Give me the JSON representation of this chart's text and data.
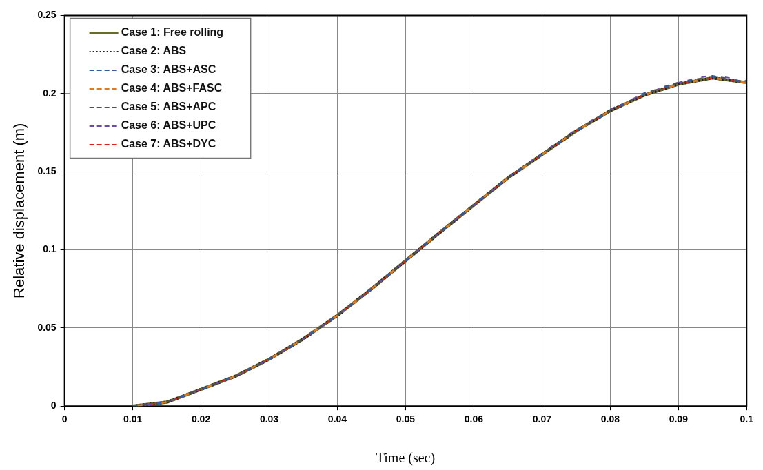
{
  "chart_data": {
    "type": "line",
    "xlabel": "Time (sec)",
    "ylabel": "Relative displacement (m)",
    "x": [
      0.01,
      0.015,
      0.02,
      0.025,
      0.03,
      0.035,
      0.04,
      0.045,
      0.05,
      0.055,
      0.06,
      0.065,
      0.07,
      0.075,
      0.08,
      0.085,
      0.09,
      0.095,
      0.1
    ],
    "series": [
      {
        "name": "Case 1: Free rolling",
        "color": "#6b6b2a",
        "line_style": "solid",
        "values": [
          0,
          0.0025,
          0.0107,
          0.019,
          0.03,
          0.043,
          0.058,
          0.075,
          0.093,
          0.111,
          0.1286,
          0.146,
          0.161,
          0.176,
          0.189,
          0.199,
          0.206,
          0.21,
          0.207
        ]
      },
      {
        "name": "Case 2: ABS",
        "color": "#202020",
        "line_style": "dotted",
        "values": [
          0,
          0.0025,
          0.0107,
          0.019,
          0.03,
          0.043,
          0.058,
          0.075,
          0.093,
          0.111,
          0.1286,
          0.146,
          0.161,
          0.176,
          0.189,
          0.199,
          0.206,
          0.21,
          0.207
        ]
      },
      {
        "name": "Case 3: ABS+ASC",
        "color": "#3a5a9a",
        "line_style": "dashed",
        "values": [
          0,
          0.0025,
          0.0107,
          0.019,
          0.03,
          0.043,
          0.058,
          0.075,
          0.093,
          0.111,
          0.1286,
          0.146,
          0.161,
          0.176,
          0.189,
          0.2,
          0.207,
          0.211,
          0.207
        ]
      },
      {
        "name": "Case 4: ABS+FASC",
        "color": "#e07a20",
        "line_style": "dashed",
        "values": [
          0,
          0.0025,
          0.0107,
          0.019,
          0.03,
          0.043,
          0.058,
          0.075,
          0.093,
          0.111,
          0.1286,
          0.146,
          0.161,
          0.176,
          0.189,
          0.199,
          0.206,
          0.21,
          0.207
        ]
      },
      {
        "name": "Case 5: ABS+APC",
        "color": "#505050",
        "line_style": "dashed",
        "values": [
          0,
          0.0025,
          0.0107,
          0.019,
          0.03,
          0.043,
          0.058,
          0.075,
          0.093,
          0.111,
          0.1286,
          0.146,
          0.161,
          0.176,
          0.189,
          0.2,
          0.207,
          0.211,
          0.208
        ]
      },
      {
        "name": "Case 6: ABS+UPC",
        "color": "#6a4aa8",
        "line_style": "dashed",
        "values": [
          0,
          0.0025,
          0.0107,
          0.019,
          0.03,
          0.043,
          0.058,
          0.075,
          0.093,
          0.111,
          0.1286,
          0.146,
          0.162,
          0.177,
          0.19,
          0.2,
          0.207,
          0.212,
          0.208
        ]
      },
      {
        "name": "Case 7: ABS+DYC",
        "color": "#e02020",
        "line_style": "dashed",
        "values": [
          0,
          0.0025,
          0.0107,
          0.019,
          0.03,
          0.043,
          0.058,
          0.075,
          0.093,
          0.111,
          0.1286,
          0.146,
          0.161,
          0.176,
          0.189,
          0.199,
          0.206,
          0.21,
          0.207
        ]
      }
    ],
    "xlim": [
      0,
      0.1
    ],
    "xticks": [
      0,
      0.01,
      0.02,
      0.03,
      0.04,
      0.05,
      0.06,
      0.07,
      0.08,
      0.09,
      0.1
    ],
    "ylim": [
      0,
      0.25
    ],
    "yticks": [
      0,
      0.05,
      0.1,
      0.15,
      0.2,
      0.25
    ],
    "grid": true,
    "legend": "top left",
    "marker": "none"
  }
}
